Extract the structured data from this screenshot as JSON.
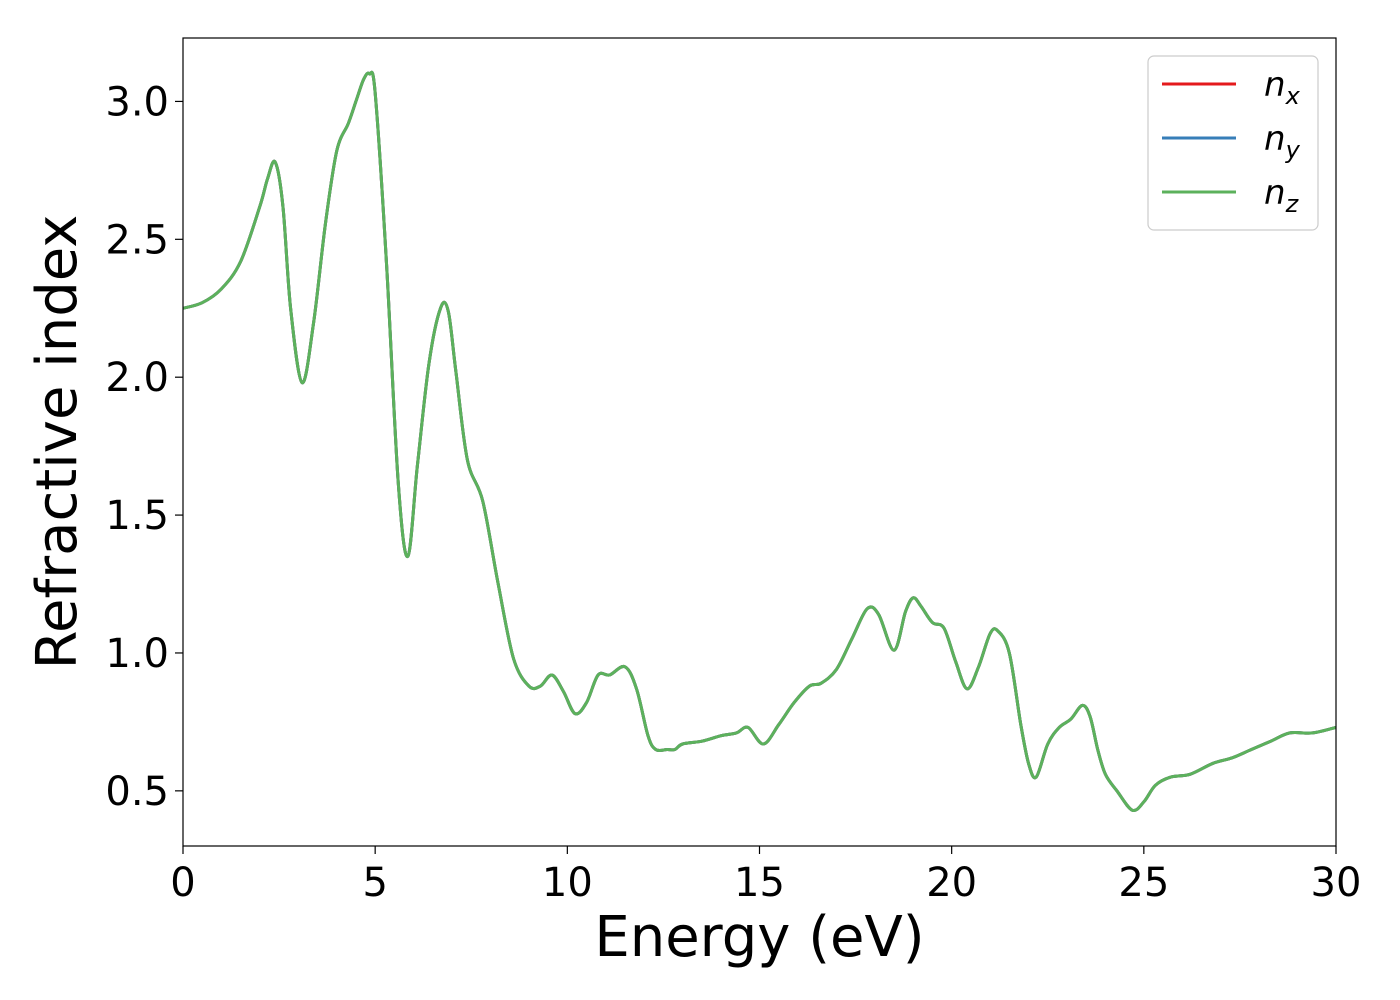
{
  "chart_data": {
    "type": "line",
    "xlabel": "Energy (eV)",
    "ylabel": "Refractive index",
    "xlim": [
      0,
      30
    ],
    "ylim": [
      0.3,
      3.23
    ],
    "xticks": [
      0,
      5,
      10,
      15,
      20,
      25,
      30
    ],
    "xtick_labels": [
      "0",
      "5",
      "10",
      "15",
      "20",
      "25",
      "30"
    ],
    "yticks": [
      0.5,
      1.0,
      1.5,
      2.0,
      2.5,
      3.0
    ],
    "ytick_labels": [
      "0.5",
      "1.0",
      "1.5",
      "2.0",
      "2.5",
      "3.0"
    ],
    "grid": false,
    "legend_position": "top-right",
    "colors": {
      "n_x": "#e41a1c",
      "n_y": "#377eb8",
      "n_z": "#5cb15c"
    },
    "series": [
      {
        "name": "n_x",
        "legend_base": "n",
        "legend_sub": "x",
        "color": "#e41a1c"
      },
      {
        "name": "n_y",
        "legend_base": "n",
        "legend_sub": "y",
        "color": "#377eb8"
      },
      {
        "name": "n_z",
        "legend_base": "n",
        "legend_sub": "z",
        "color": "#5cb15c"
      }
    ],
    "x": [
      0,
      0.5,
      1.0,
      1.5,
      2.0,
      2.2,
      2.4,
      2.6,
      2.8,
      3.1,
      3.4,
      3.7,
      4.0,
      4.3,
      4.5,
      4.7,
      4.85,
      5.0,
      5.3,
      5.6,
      5.85,
      6.1,
      6.4,
      6.7,
      6.9,
      7.1,
      7.4,
      7.8,
      8.2,
      8.6,
      9.0,
      9.3,
      9.6,
      9.9,
      10.2,
      10.5,
      10.8,
      11.1,
      11.5,
      11.8,
      12.1,
      12.3,
      12.6,
      12.8,
      13.0,
      13.5,
      14.0,
      14.4,
      14.7,
      15.1,
      15.5,
      15.9,
      16.3,
      16.6,
      17.0,
      17.4,
      17.8,
      18.1,
      18.5,
      18.8,
      19.0,
      19.2,
      19.5,
      19.8,
      20.1,
      20.4,
      20.7,
      21.0,
      21.2,
      21.5,
      21.8,
      22.0,
      22.2,
      22.5,
      22.8,
      23.1,
      23.4,
      23.6,
      23.8,
      24.0,
      24.3,
      24.7,
      25.0,
      25.3,
      25.7,
      26.2,
      26.8,
      27.3,
      27.8,
      28.3,
      28.8,
      29.4,
      30.0
    ],
    "y": [
      2.25,
      2.27,
      2.32,
      2.42,
      2.62,
      2.72,
      2.78,
      2.62,
      2.25,
      1.98,
      2.2,
      2.55,
      2.82,
      2.92,
      3.0,
      3.08,
      3.1,
      3.03,
      2.4,
      1.62,
      1.35,
      1.68,
      2.05,
      2.25,
      2.24,
      2.02,
      1.7,
      1.55,
      1.25,
      0.98,
      0.88,
      0.88,
      0.92,
      0.86,
      0.78,
      0.82,
      0.92,
      0.92,
      0.95,
      0.87,
      0.7,
      0.65,
      0.65,
      0.65,
      0.67,
      0.68,
      0.7,
      0.71,
      0.73,
      0.67,
      0.74,
      0.82,
      0.88,
      0.89,
      0.94,
      1.05,
      1.16,
      1.14,
      1.01,
      1.15,
      1.2,
      1.17,
      1.11,
      1.09,
      0.97,
      0.87,
      0.95,
      1.07,
      1.08,
      1.0,
      0.74,
      0.6,
      0.55,
      0.67,
      0.73,
      0.76,
      0.81,
      0.77,
      0.65,
      0.56,
      0.5,
      0.43,
      0.46,
      0.52,
      0.55,
      0.56,
      0.6,
      0.62,
      0.65,
      0.68,
      0.71,
      0.71,
      0.73
    ]
  }
}
